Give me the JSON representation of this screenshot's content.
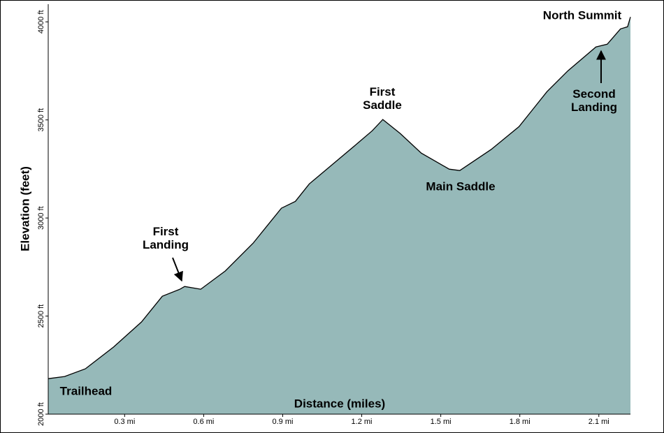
{
  "chart_data": {
    "type": "area",
    "x": [
      0.01,
      0.072,
      0.151,
      0.258,
      0.364,
      0.443,
      0.51,
      0.528,
      0.589,
      0.682,
      0.788,
      0.895,
      0.948,
      1.001,
      1.08,
      1.187,
      1.24,
      1.28,
      1.346,
      1.426,
      1.532,
      1.572,
      1.691,
      1.797,
      1.903,
      1.983,
      2.089,
      2.132,
      2.182,
      2.209,
      2.22
    ],
    "values": [
      2181,
      2192,
      2231,
      2342,
      2470,
      2601,
      2637,
      2651,
      2637,
      2730,
      2872,
      3050,
      3085,
      3174,
      3263,
      3384,
      3445,
      3502,
      3431,
      3331,
      3249,
      3242,
      3349,
      3466,
      3644,
      3751,
      3872,
      3886,
      3964,
      3975,
      4025
    ],
    "color": "#96b9b9",
    "xlabel": "Distance (miles)",
    "ylabel": "Elevation (feet)",
    "xlim": [
      0.01,
      2.22
    ],
    "ylim": [
      2000,
      4090
    ],
    "xticks": [
      {
        "value": 0.3,
        "label": "0.3 mi"
      },
      {
        "value": 0.6,
        "label": "0.6 mi"
      },
      {
        "value": 0.9,
        "label": "0.9 mi"
      },
      {
        "value": 1.2,
        "label": "1.2 mi"
      },
      {
        "value": 1.5,
        "label": "1.5 mi"
      },
      {
        "value": 1.8,
        "label": "1.8 mi"
      },
      {
        "value": 2.1,
        "label": "2.1 mi"
      }
    ],
    "yticks": [
      {
        "value": 2000,
        "label": "2000 ft"
      },
      {
        "value": 2500,
        "label": "2500 ft"
      },
      {
        "value": 3000,
        "label": "3000 ft"
      },
      {
        "value": 3500,
        "label": "3500 ft"
      },
      {
        "value": 4000,
        "label": "4000 ft"
      }
    ],
    "annotations": [
      "Trailhead",
      "First Landing",
      "First Saddle",
      "Main Saddle",
      "Second Landing",
      "North Summit"
    ]
  }
}
